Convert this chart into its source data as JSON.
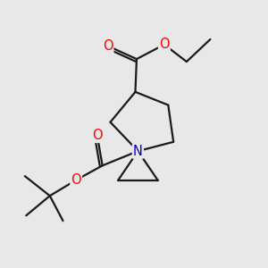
{
  "background_color": "#e8e8e8",
  "line_color": "#1a1a1a",
  "bond_width": 1.6,
  "atom_colors": {
    "O": "#ff0000",
    "N": "#0000cc",
    "C": "#1a1a1a"
  },
  "font_size": 10.5,
  "figsize": [
    3.0,
    3.0
  ],
  "dpi": 100
}
